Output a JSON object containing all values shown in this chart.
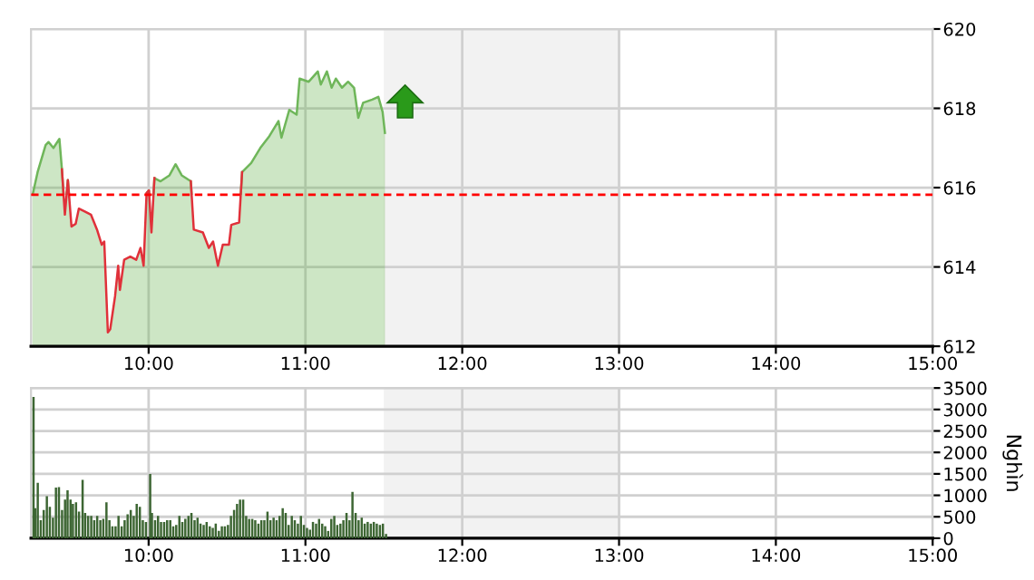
{
  "chart_data": [
    {
      "type": "area",
      "x": [
        9.258,
        9.292,
        9.343,
        9.362,
        9.393,
        9.431,
        9.447,
        9.466,
        9.485,
        9.508,
        9.535,
        9.555,
        9.593,
        9.632,
        9.671,
        9.701,
        9.717,
        9.74,
        9.755,
        9.786,
        9.806,
        9.817,
        9.844,
        9.883,
        9.921,
        9.948,
        9.968,
        9.987,
        10.002,
        10.018,
        10.037,
        10.076,
        10.133,
        10.172,
        10.211,
        10.269,
        10.288,
        10.346,
        10.384,
        10.411,
        10.442,
        10.473,
        10.512,
        10.527,
        10.577,
        10.596,
        10.654,
        10.712,
        10.77,
        10.828,
        10.847,
        10.897,
        10.944,
        10.963,
        11.021,
        11.079,
        11.098,
        11.137,
        11.167,
        11.194,
        11.233,
        11.272,
        11.31,
        11.337,
        11.368,
        11.426,
        11.465,
        11.492,
        11.507
      ],
      "series": [
        {
          "color": "#6fb65a",
          "values": [
            615.78,
            616.39,
            617.07,
            617.15,
            617.0,
            617.23,
            616.46,
            615.32,
            616.19,
            615.02,
            615.09,
            615.47,
            615.4,
            615.32,
            614.94,
            614.56,
            614.64,
            612.35,
            612.43,
            613.26,
            614.03,
            613.42,
            614.18,
            614.26,
            614.18,
            614.48,
            614.03,
            615.86,
            615.93,
            614.87,
            616.24,
            616.16,
            616.31,
            616.59,
            616.31,
            616.16,
            614.94,
            614.87,
            614.48,
            614.64,
            614.03,
            614.56,
            614.56,
            615.06,
            615.12,
            616.39,
            616.62,
            617.0,
            617.3,
            617.68,
            617.26,
            617.96,
            617.84,
            618.75,
            618.67,
            618.93,
            618.6,
            618.93,
            618.52,
            618.75,
            618.52,
            618.67,
            618.52,
            617.76,
            618.14,
            618.22,
            618.29,
            617.91,
            617.38
          ]
        },
        {
          "type": "line",
          "color": "#e0313a",
          "values": [
            null,
            null,
            null,
            null,
            null,
            null,
            616.46,
            615.32,
            616.19,
            615.02,
            615.09,
            615.47,
            615.4,
            615.32,
            614.94,
            614.56,
            614.64,
            612.35,
            612.43,
            613.26,
            614.03,
            613.42,
            614.18,
            614.26,
            614.18,
            614.48,
            614.03,
            615.86,
            615.93,
            614.87,
            616.24,
            null,
            null,
            null,
            null,
            616.16,
            614.94,
            614.87,
            614.48,
            614.64,
            614.03,
            614.56,
            614.56,
            615.06,
            615.12,
            616.39,
            null,
            null,
            null,
            null,
            null,
            null,
            null,
            null,
            null,
            null,
            null,
            null,
            null,
            null,
            null,
            null,
            null,
            null,
            null,
            null,
            null,
            null,
            null
          ]
        }
      ],
      "xlim": [
        9.25,
        15
      ],
      "xticks": [
        {
          "value": 10,
          "label": "10:00"
        },
        {
          "value": 11,
          "label": "11:00"
        },
        {
          "value": 12,
          "label": "12:00"
        },
        {
          "value": 13,
          "label": "13:00"
        },
        {
          "value": 14,
          "label": "14:00"
        },
        {
          "value": 15,
          "label": "15:00"
        }
      ],
      "ylim": [
        612,
        620
      ],
      "yticks": [
        612,
        614,
        616,
        618,
        620
      ],
      "ref_lines": [
        {
          "axis": "y",
          "value": 615.82,
          "color": "#ff0000",
          "line_style": "dashed"
        }
      ],
      "bands": [
        {
          "axis": "x",
          "from": 11.5,
          "to": 13,
          "color": "#f2f2f2"
        }
      ],
      "grid": true
    },
    {
      "type": "bar",
      "x": [
        9.266,
        9.277,
        9.293,
        9.312,
        9.331,
        9.351,
        9.37,
        9.39,
        9.409,
        9.428,
        9.448,
        9.467,
        9.483,
        9.502,
        9.517,
        9.537,
        9.556,
        9.579,
        9.595,
        9.614,
        9.634,
        9.653,
        9.672,
        9.692,
        9.711,
        9.731,
        9.75,
        9.769,
        9.789,
        9.808,
        9.828,
        9.847,
        9.866,
        9.886,
        9.905,
        9.924,
        9.944,
        9.963,
        9.983,
        10.01,
        10.021,
        10.041,
        10.06,
        10.079,
        10.099,
        10.118,
        10.138,
        10.157,
        10.176,
        10.196,
        10.215,
        10.234,
        10.254,
        10.273,
        10.293,
        10.312,
        10.331,
        10.351,
        10.37,
        10.39,
        10.409,
        10.428,
        10.448,
        10.467,
        10.486,
        10.506,
        10.525,
        10.545,
        10.564,
        10.583,
        10.603,
        10.622,
        10.641,
        10.661,
        10.68,
        10.7,
        10.719,
        10.738,
        10.758,
        10.777,
        10.797,
        10.816,
        10.835,
        10.855,
        10.874,
        10.893,
        10.913,
        10.932,
        10.952,
        10.971,
        10.99,
        11.01,
        11.029,
        11.048,
        11.068,
        11.087,
        11.107,
        11.126,
        11.145,
        11.165,
        11.184,
        11.203,
        11.223,
        11.242,
        11.262,
        11.281,
        11.3,
        11.32,
        11.339,
        11.359,
        11.378,
        11.397,
        11.417,
        11.436,
        11.455,
        11.475,
        11.494,
        11.514
      ],
      "values": [
        3290,
        700,
        1290,
        420,
        660,
        980,
        730,
        480,
        1180,
        1190,
        660,
        900,
        1120,
        900,
        800,
        840,
        620,
        1360,
        590,
        520,
        520,
        420,
        520,
        420,
        450,
        840,
        420,
        280,
        280,
        520,
        280,
        420,
        560,
        660,
        520,
        800,
        730,
        420,
        380,
        1500,
        590,
        420,
        520,
        380,
        380,
        420,
        420,
        280,
        310,
        520,
        380,
        450,
        520,
        590,
        420,
        480,
        340,
        310,
        380,
        280,
        240,
        340,
        170,
        280,
        280,
        310,
        520,
        660,
        800,
        900,
        900,
        520,
        450,
        450,
        420,
        340,
        420,
        420,
        620,
        420,
        480,
        420,
        520,
        700,
        590,
        310,
        520,
        420,
        340,
        520,
        310,
        240,
        200,
        380,
        340,
        450,
        340,
        280,
        170,
        450,
        520,
        310,
        340,
        420,
        590,
        420,
        1080,
        590,
        420,
        480,
        340,
        380,
        340,
        380,
        340,
        310,
        340,
        100
      ],
      "color": "#3d6633",
      "ylabel": "Nghìn",
      "xlim": [
        9.25,
        15
      ],
      "xticks": [
        {
          "value": 10,
          "label": "10:00"
        },
        {
          "value": 11,
          "label": "11:00"
        },
        {
          "value": 12,
          "label": "12:00"
        },
        {
          "value": 13,
          "label": "13:00"
        },
        {
          "value": 14,
          "label": "14:00"
        },
        {
          "value": 15,
          "label": "15:00"
        }
      ],
      "ylim": [
        0,
        3500
      ],
      "yticks": [
        0,
        500,
        1000,
        1500,
        2000,
        2500,
        3000,
        3500
      ],
      "bands": [
        {
          "axis": "x",
          "from": 11.5,
          "to": 13,
          "color": "#f2f2f2"
        }
      ],
      "grid": true
    }
  ]
}
